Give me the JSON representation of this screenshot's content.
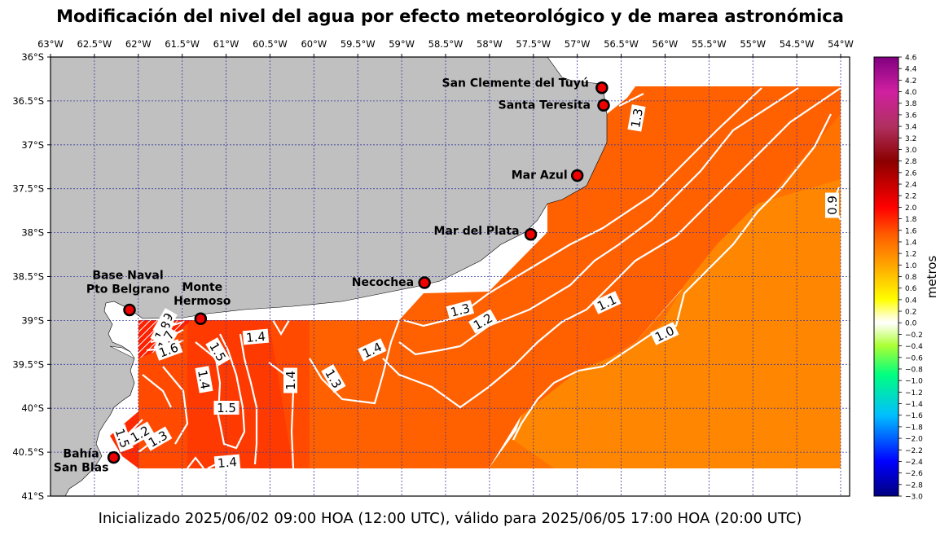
{
  "title": "Modificación del nivel del agua por efecto meteorológico y de marea astronómica",
  "subtitle": "Inicializado 2025/06/02 09:00 HOA (12:00 UTC), válido para 2025/06/05 17:00 HOA (20:00 UTC)",
  "map": {
    "lon_range": [
      -63,
      -54
    ],
    "lat_range": [
      -41,
      -36
    ],
    "lon_ticks": [
      "63°W",
      "62.5°W",
      "62°W",
      "61.5°W",
      "61°W",
      "60.5°W",
      "60°W",
      "59.5°W",
      "59°W",
      "58.5°W",
      "58°W",
      "57.5°W",
      "57°W",
      "56.5°W",
      "56°W",
      "55.5°W",
      "55°W",
      "54.5°W",
      "54°W"
    ],
    "lat_ticks": [
      "36°S",
      "36.5°S",
      "37°S",
      "37.5°S",
      "38°S",
      "38.5°S",
      "39°S",
      "39.5°S",
      "40°S",
      "40.5°S",
      "41°S"
    ],
    "land_color": "#c0c0c0",
    "grid": true,
    "grid_color": "#3a3aa0"
  },
  "stations": [
    {
      "name": "San Clemente del Tuyú",
      "lon": -56.72,
      "lat": -36.35,
      "label_lines": [
        "San Clemente del Tuyú"
      ]
    },
    {
      "name": "Santa Teresita",
      "lon": -56.7,
      "lat": -36.55,
      "label_lines": [
        "Santa Teresita"
      ]
    },
    {
      "name": "Mar Azul",
      "lon": -57.0,
      "lat": -37.35,
      "label_lines": [
        "Mar Azul"
      ]
    },
    {
      "name": "Mar del Plata",
      "lon": -57.53,
      "lat": -38.02,
      "label_lines": [
        "Mar del Plata"
      ]
    },
    {
      "name": "Necochea",
      "lon": -58.74,
      "lat": -38.57,
      "label_lines": [
        "Necochea"
      ]
    },
    {
      "name": "Base Naval Pto Belgrano",
      "lon": -62.1,
      "lat": -38.88,
      "label_lines": [
        "Base Naval",
        "Pto Belgrano"
      ]
    },
    {
      "name": "Monte Hermoso",
      "lon": -61.29,
      "lat": -38.98,
      "label_lines": [
        "Monte",
        "Hermoso"
      ]
    },
    {
      "name": "Bahía San Blas",
      "lon": -62.28,
      "lat": -40.56,
      "label_lines": [
        "Bahía",
        "San Blas"
      ]
    }
  ],
  "contour_labels": [
    "1.3",
    "1.2",
    "1.1",
    "1.0",
    "0.9",
    "1.3",
    "1.4",
    "1.4",
    "1.3",
    "1.4",
    "1.5",
    "1.5",
    "1.4",
    "1.4",
    "1.9",
    "1.8",
    "1.7",
    "1.6",
    "1.5",
    "1.2",
    "1.3"
  ],
  "colorbar": {
    "label": "metros",
    "min": -3.0,
    "max": 4.6,
    "ticks": [
      "4.6",
      "4.4",
      "4.2",
      "4.0",
      "3.8",
      "3.6",
      "3.4",
      "3.2",
      "3.0",
      "2.8",
      "2.6",
      "2.4",
      "2.2",
      "2.0",
      "1.8",
      "1.6",
      "1.4",
      "1.2",
      "1.0",
      "0.8",
      "0.6",
      "0.4",
      "0.2",
      "0.0",
      "−0.2",
      "−0.4",
      "−0.6",
      "−0.8",
      "−1.0",
      "−1.2",
      "−1.4",
      "−1.6",
      "−1.8",
      "−2.0",
      "−2.2",
      "−2.4",
      "−2.6",
      "−2.8",
      "−3.0"
    ],
    "stops": [
      {
        "v": -3.0,
        "c": "#000080"
      },
      {
        "v": -2.4,
        "c": "#0000ff"
      },
      {
        "v": -1.6,
        "c": "#00bfff"
      },
      {
        "v": -0.9,
        "c": "#00ff80"
      },
      {
        "v": -0.4,
        "c": "#aaff33"
      },
      {
        "v": -0.1,
        "c": "#eeffcc"
      },
      {
        "v": 0.0,
        "c": "#ffffff"
      },
      {
        "v": 0.1,
        "c": "#ffffcc"
      },
      {
        "v": 0.4,
        "c": "#ffff00"
      },
      {
        "v": 1.0,
        "c": "#ffa500"
      },
      {
        "v": 1.5,
        "c": "#ff6000"
      },
      {
        "v": 2.0,
        "c": "#ff0000"
      },
      {
        "v": 2.8,
        "c": "#8b0000"
      },
      {
        "v": 3.4,
        "c": "#b03060"
      },
      {
        "v": 4.0,
        "c": "#d020a0"
      },
      {
        "v": 4.6,
        "c": "#800080"
      }
    ]
  },
  "colors": {
    "field_high": "#ff6000",
    "field_mid": "#ff7400",
    "field_low": "#ff8600",
    "field_red": "#ff3a00",
    "contour": "#ffffff",
    "station_fill": "#ee0000"
  }
}
